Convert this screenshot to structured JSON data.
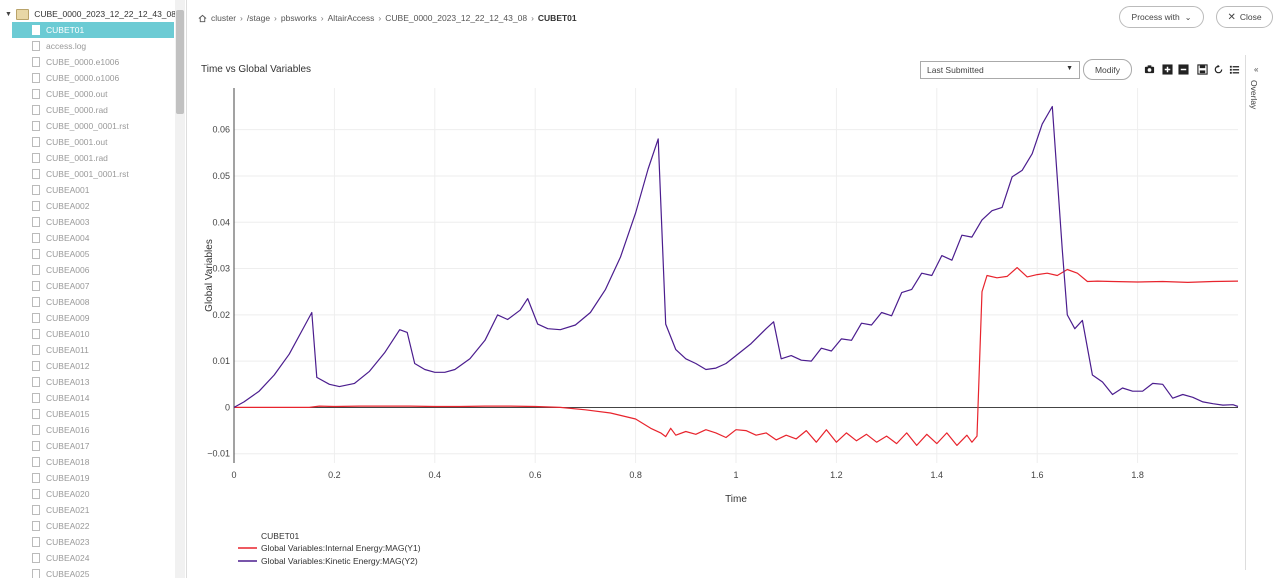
{
  "sidebar": {
    "root_label": "CUBE_0000_2023_12_22_12_43_08",
    "items": [
      {
        "label": "CUBET01",
        "selected": true
      },
      {
        "label": "access.log"
      },
      {
        "label": "CUBE_0000.e1006"
      },
      {
        "label": "CUBE_0000.o1006"
      },
      {
        "label": "CUBE_0000.out"
      },
      {
        "label": "CUBE_0000.rad"
      },
      {
        "label": "CUBE_0000_0001.rst"
      },
      {
        "label": "CUBE_0001.out"
      },
      {
        "label": "CUBE_0001.rad"
      },
      {
        "label": "CUBE_0001_0001.rst"
      },
      {
        "label": "CUBEA001"
      },
      {
        "label": "CUBEA002"
      },
      {
        "label": "CUBEA003"
      },
      {
        "label": "CUBEA004"
      },
      {
        "label": "CUBEA005"
      },
      {
        "label": "CUBEA006"
      },
      {
        "label": "CUBEA007"
      },
      {
        "label": "CUBEA008"
      },
      {
        "label": "CUBEA009"
      },
      {
        "label": "CUBEA010"
      },
      {
        "label": "CUBEA011"
      },
      {
        "label": "CUBEA012"
      },
      {
        "label": "CUBEA013"
      },
      {
        "label": "CUBEA014"
      },
      {
        "label": "CUBEA015"
      },
      {
        "label": "CUBEA016"
      },
      {
        "label": "CUBEA017"
      },
      {
        "label": "CUBEA018"
      },
      {
        "label": "CUBEA019"
      },
      {
        "label": "CUBEA020"
      },
      {
        "label": "CUBEA021"
      },
      {
        "label": "CUBEA022"
      },
      {
        "label": "CUBEA023"
      },
      {
        "label": "CUBEA024"
      },
      {
        "label": "CUBEA025"
      }
    ]
  },
  "breadcrumb": {
    "items": [
      "cluster",
      "/stage",
      "pbsworks",
      "AltairAccess",
      "CUBE_0000_2023_12_22_12_43_08"
    ],
    "current": "CUBET01"
  },
  "header": {
    "process_with": "Process with",
    "close": "Close"
  },
  "toolbar": {
    "select_value": "Last Submitted",
    "modify": "Modify",
    "icons": [
      "camera-icon",
      "zoom-in-icon",
      "zoom-out-icon",
      "save-icon",
      "reset-icon",
      "list-icon"
    ]
  },
  "overlay": {
    "label": "Overlay"
  },
  "colors": {
    "accent": "#6ccbd4",
    "internal": "#e8242d",
    "kinetic": "#4b1d8e"
  },
  "chart_data": {
    "type": "line",
    "title": "Time vs Global Variables",
    "xlabel": "Time",
    "ylabel": "Global Variables",
    "xlim": [
      0,
      2.0
    ],
    "ylim": [
      -0.012,
      0.069
    ],
    "x_ticks": [
      0,
      0.2,
      0.4,
      0.6,
      0.8,
      1,
      1.2,
      1.4,
      1.6,
      1.8
    ],
    "y_ticks": [
      -0.01,
      0,
      0.01,
      0.02,
      0.03,
      0.04,
      0.05,
      0.06
    ],
    "x_tick_labels": [
      "0",
      "0.2",
      "0.4",
      "0.6",
      "0.8",
      "1",
      "1.2",
      "1.4",
      "1.6",
      "1.8"
    ],
    "y_tick_labels": [
      "−0.01",
      "0",
      "0.01",
      "0.02",
      "0.03",
      "0.04",
      "0.05",
      "0.06"
    ],
    "grid": true,
    "legend_title": "CUBET01",
    "legend_position": "bottom-left",
    "series": [
      {
        "name": "Global Variables:Internal Energy:MAG(Y1)",
        "color": "#e8242d",
        "points": [
          [
            0,
            0
          ],
          [
            0.15,
            0
          ],
          [
            0.17,
            0.0003
          ],
          [
            0.2,
            0.0002
          ],
          [
            0.25,
            0.0003
          ],
          [
            0.3,
            0.0003
          ],
          [
            0.35,
            0.0003
          ],
          [
            0.4,
            0.0002
          ],
          [
            0.45,
            0.0002
          ],
          [
            0.5,
            0.0003
          ],
          [
            0.55,
            0.0003
          ],
          [
            0.6,
            0.0002
          ],
          [
            0.65,
            0
          ],
          [
            0.7,
            -0.0005
          ],
          [
            0.75,
            -0.0012
          ],
          [
            0.8,
            -0.0025
          ],
          [
            0.83,
            -0.0045
          ],
          [
            0.85,
            -0.0055
          ],
          [
            0.86,
            -0.0063
          ],
          [
            0.87,
            -0.0045
          ],
          [
            0.88,
            -0.006
          ],
          [
            0.9,
            -0.0052
          ],
          [
            0.92,
            -0.0058
          ],
          [
            0.94,
            -0.0048
          ],
          [
            0.96,
            -0.0055
          ],
          [
            0.98,
            -0.0065
          ],
          [
            1.0,
            -0.0048
          ],
          [
            1.02,
            -0.005
          ],
          [
            1.04,
            -0.006
          ],
          [
            1.06,
            -0.0055
          ],
          [
            1.08,
            -0.007
          ],
          [
            1.1,
            -0.006
          ],
          [
            1.12,
            -0.0068
          ],
          [
            1.14,
            -0.005
          ],
          [
            1.16,
            -0.0075
          ],
          [
            1.18,
            -0.0048
          ],
          [
            1.2,
            -0.0075
          ],
          [
            1.22,
            -0.0055
          ],
          [
            1.24,
            -0.0072
          ],
          [
            1.26,
            -0.0058
          ],
          [
            1.28,
            -0.0075
          ],
          [
            1.3,
            -0.0062
          ],
          [
            1.32,
            -0.0078
          ],
          [
            1.34,
            -0.0055
          ],
          [
            1.36,
            -0.0082
          ],
          [
            1.38,
            -0.0058
          ],
          [
            1.4,
            -0.0078
          ],
          [
            1.42,
            -0.0055
          ],
          [
            1.44,
            -0.0082
          ],
          [
            1.46,
            -0.006
          ],
          [
            1.47,
            -0.0075
          ],
          [
            1.48,
            -0.0062
          ],
          [
            1.49,
            0.025
          ],
          [
            1.5,
            0.0285
          ],
          [
            1.52,
            0.028
          ],
          [
            1.54,
            0.0283
          ],
          [
            1.56,
            0.0302
          ],
          [
            1.58,
            0.0282
          ],
          [
            1.6,
            0.0287
          ],
          [
            1.62,
            0.029
          ],
          [
            1.64,
            0.0285
          ],
          [
            1.66,
            0.0298
          ],
          [
            1.68,
            0.029
          ],
          [
            1.7,
            0.0272
          ],
          [
            1.72,
            0.0273
          ],
          [
            1.75,
            0.0272
          ],
          [
            1.8,
            0.0271
          ],
          [
            1.85,
            0.0272
          ],
          [
            1.9,
            0.027
          ],
          [
            1.95,
            0.0272
          ],
          [
            2.0,
            0.0273
          ]
        ]
      },
      {
        "name": "Global Variables:Kinetic Energy:MAG(Y2)",
        "color": "#4b1d8e",
        "points": [
          [
            0,
            0
          ],
          [
            0.02,
            0.0012
          ],
          [
            0.05,
            0.0035
          ],
          [
            0.08,
            0.007
          ],
          [
            0.11,
            0.0115
          ],
          [
            0.14,
            0.0175
          ],
          [
            0.155,
            0.0205
          ],
          [
            0.165,
            0.0065
          ],
          [
            0.19,
            0.005
          ],
          [
            0.21,
            0.0045
          ],
          [
            0.24,
            0.0052
          ],
          [
            0.27,
            0.0078
          ],
          [
            0.3,
            0.0118
          ],
          [
            0.33,
            0.0168
          ],
          [
            0.345,
            0.0162
          ],
          [
            0.36,
            0.0095
          ],
          [
            0.38,
            0.0082
          ],
          [
            0.4,
            0.0076
          ],
          [
            0.42,
            0.0076
          ],
          [
            0.44,
            0.0082
          ],
          [
            0.47,
            0.0105
          ],
          [
            0.5,
            0.0145
          ],
          [
            0.525,
            0.02
          ],
          [
            0.545,
            0.019
          ],
          [
            0.57,
            0.021
          ],
          [
            0.585,
            0.0235
          ],
          [
            0.605,
            0.018
          ],
          [
            0.625,
            0.017
          ],
          [
            0.65,
            0.0168
          ],
          [
            0.68,
            0.0178
          ],
          [
            0.71,
            0.0205
          ],
          [
            0.74,
            0.0255
          ],
          [
            0.77,
            0.0325
          ],
          [
            0.8,
            0.042
          ],
          [
            0.825,
            0.0515
          ],
          [
            0.845,
            0.058
          ],
          [
            0.86,
            0.018
          ],
          [
            0.88,
            0.0125
          ],
          [
            0.9,
            0.0105
          ],
          [
            0.92,
            0.0095
          ],
          [
            0.94,
            0.0082
          ],
          [
            0.96,
            0.0085
          ],
          [
            0.98,
            0.0095
          ],
          [
            1.0,
            0.0112
          ],
          [
            1.03,
            0.0138
          ],
          [
            1.06,
            0.017
          ],
          [
            1.075,
            0.0185
          ],
          [
            1.09,
            0.0105
          ],
          [
            1.11,
            0.0112
          ],
          [
            1.13,
            0.0102
          ],
          [
            1.15,
            0.01
          ],
          [
            1.17,
            0.0128
          ],
          [
            1.19,
            0.0122
          ],
          [
            1.21,
            0.0148
          ],
          [
            1.23,
            0.0145
          ],
          [
            1.25,
            0.0182
          ],
          [
            1.27,
            0.0178
          ],
          [
            1.29,
            0.0205
          ],
          [
            1.31,
            0.0198
          ],
          [
            1.33,
            0.0248
          ],
          [
            1.35,
            0.0255
          ],
          [
            1.37,
            0.029
          ],
          [
            1.39,
            0.0285
          ],
          [
            1.41,
            0.0328
          ],
          [
            1.43,
            0.0318
          ],
          [
            1.45,
            0.0372
          ],
          [
            1.47,
            0.0368
          ],
          [
            1.49,
            0.0405
          ],
          [
            1.51,
            0.0425
          ],
          [
            1.53,
            0.0432
          ],
          [
            1.55,
            0.0498
          ],
          [
            1.57,
            0.0512
          ],
          [
            1.59,
            0.0548
          ],
          [
            1.61,
            0.0612
          ],
          [
            1.63,
            0.065
          ],
          [
            1.65,
            0.034
          ],
          [
            1.66,
            0.02
          ],
          [
            1.675,
            0.017
          ],
          [
            1.69,
            0.0188
          ],
          [
            1.71,
            0.007
          ],
          [
            1.73,
            0.0055
          ],
          [
            1.75,
            0.0028
          ],
          [
            1.77,
            0.0042
          ],
          [
            1.79,
            0.0035
          ],
          [
            1.81,
            0.0035
          ],
          [
            1.83,
            0.0052
          ],
          [
            1.85,
            0.005
          ],
          [
            1.87,
            0.002
          ],
          [
            1.89,
            0.0028
          ],
          [
            1.91,
            0.0022
          ],
          [
            1.93,
            0.0012
          ],
          [
            1.95,
            0.0008
          ],
          [
            1.97,
            0.0005
          ],
          [
            1.99,
            0.0006
          ],
          [
            2.0,
            0.0002
          ]
        ]
      }
    ]
  }
}
